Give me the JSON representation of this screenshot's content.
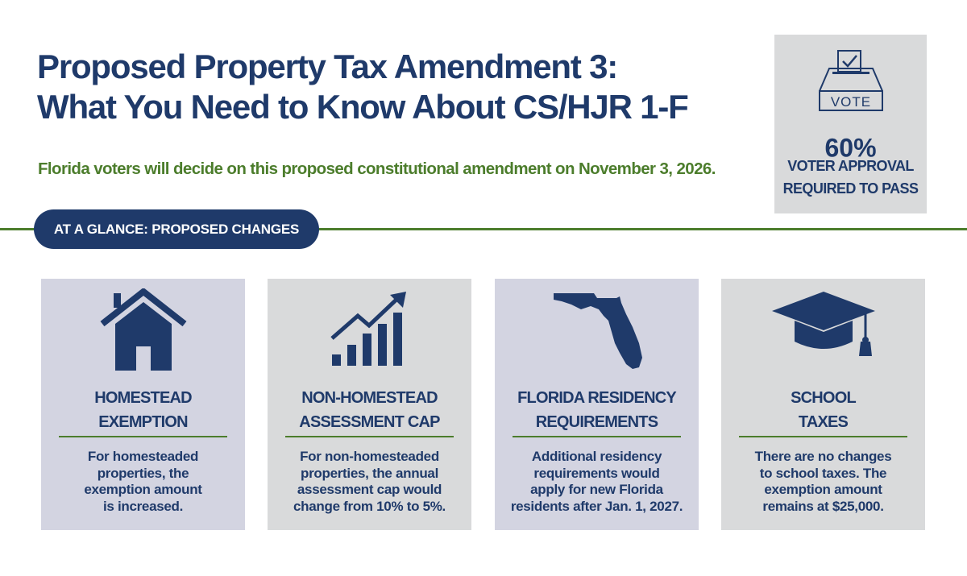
{
  "header": {
    "title_line1": "Proposed Property Tax Amendment 3:",
    "title_line2": "What You Need to Know About CS/HJR 1-F",
    "subtitle": "Florida voters will decide on this proposed constitutional amendment on November 3, 2026."
  },
  "vote_box": {
    "icon": "ballot-box-icon",
    "icon_label": "VOTE",
    "percent": "60%",
    "caption_line1": "VOTER APPROVAL",
    "caption_line2": "REQUIRED TO PASS"
  },
  "section": {
    "pill_label": "AT A GLANCE: PROPOSED CHANGES"
  },
  "cards": [
    {
      "icon": "house-icon",
      "heading_line1": "HOMESTEAD",
      "heading_line2": "EXEMPTION",
      "desc_line1": "For homesteaded",
      "desc_line2": "properties, the",
      "desc_line3": "exemption amount",
      "desc_line4": "is increased."
    },
    {
      "icon": "bar-chart-growth-icon",
      "heading_line1": "NON-HOMESTEAD",
      "heading_line2": "ASSESSMENT CAP",
      "desc_line1": "For non-homesteaded",
      "desc_line2": "properties, the annual",
      "desc_line3": "assessment cap would",
      "desc_line4_pre": "change from ",
      "desc_line4_bold": "10% to 5%",
      "desc_line4_post": "."
    },
    {
      "icon": "florida-map-icon",
      "heading_line1": "FLORIDA RESIDENCY",
      "heading_line2": "REQUIREMENTS",
      "desc_line1": "Additional residency",
      "desc_line2": "requirements would",
      "desc_line3_pre": "apply for ",
      "desc_line3_bold": "new",
      "desc_line3_post": " Florida",
      "desc_line4": "residents after Jan. 1, 2027."
    },
    {
      "icon": "graduation-cap-icon",
      "heading_line1": "SCHOOL",
      "heading_line2": "TAXES",
      "desc_line1_pre": "There are ",
      "desc_line1_bold": "no changes",
      "desc_line2": "to school taxes. The",
      "desc_line3": "exemption amount",
      "desc_line4": "remains at $25,000."
    }
  ],
  "colors": {
    "navy": "#1f3a6a",
    "green": "#4c7d2c",
    "card_lavender": "#d3d4e1",
    "card_gray": "#d9dadb"
  }
}
